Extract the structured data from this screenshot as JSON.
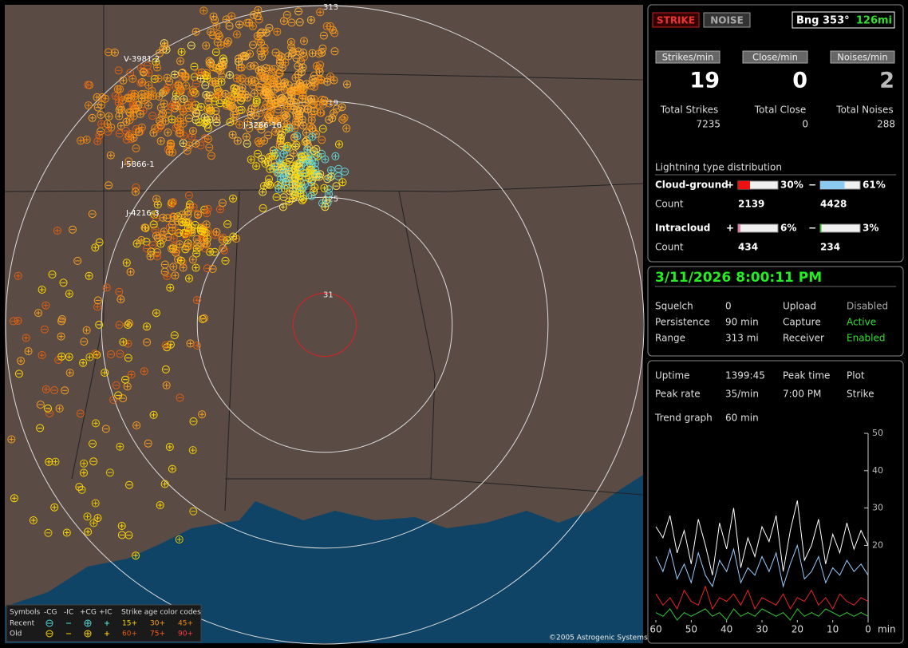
{
  "map": {
    "ring_ranges": [
      313,
      219,
      125,
      31
    ],
    "station_labels": [
      "V-3981-2",
      "J-3286-16",
      "J-5866-1",
      "J-4216-3"
    ],
    "legend": {
      "symbols": "Symbols",
      "headers": [
        "-CG",
        "-IC",
        "+CG",
        "+IC"
      ],
      "age_title": "Strike age color codes",
      "rows": [
        {
          "name": "Recent",
          "ages": [
            "15+",
            "30+",
            "45+"
          ]
        },
        {
          "name": "Old",
          "ages": [
            "60+",
            "75+",
            "90+"
          ]
        }
      ]
    },
    "copyright": "©2005 Astrogenic Systems"
  },
  "status": {
    "buttons": [
      "STRIKE",
      "NOISE"
    ],
    "bearing": "Bng 353°",
    "distance": "126mi"
  },
  "rates": [
    {
      "label": "Strikes/min",
      "value": 19,
      "total_label": "Total Strikes",
      "total": 7235
    },
    {
      "label": "Close/min",
      "value": 0,
      "total_label": "Total Close",
      "total": 0
    },
    {
      "label": "Noises/min",
      "value": 2,
      "total_label": "Total Noises",
      "total": 288
    }
  ],
  "distribution": {
    "title": "Lightning type distribution",
    "count_label": "Count",
    "rows": [
      {
        "name": "Cloud-ground",
        "parts": [
          {
            "sign": "+",
            "value": 30,
            "label": "30%",
            "count": 2139
          },
          {
            "sign": "−",
            "value": 61,
            "label": "61%",
            "count": 4428
          }
        ]
      },
      {
        "name": "Intracloud",
        "parts": [
          {
            "sign": "+",
            "value": 6,
            "label": "6%",
            "count": 434
          },
          {
            "sign": "−",
            "value": 3,
            "label": "3%",
            "count": 234
          }
        ]
      }
    ]
  },
  "clock": "3/11/2026 8:00:11 PM",
  "settings": [
    [
      "Squelch",
      "0",
      "Upload",
      "Disabled"
    ],
    [
      "Persistence",
      "90 min",
      "Capture",
      "Active"
    ],
    [
      "Range",
      "313 mi",
      "Receiver",
      "Enabled"
    ]
  ],
  "stats": [
    [
      "Uptime",
      "1399:45",
      "Peak time",
      "Plot"
    ],
    [
      "Peak rate",
      "35/min",
      "7:00 PM",
      "Strike"
    ]
  ],
  "trend": {
    "label": "Trend graph",
    "span": "60 min",
    "x_unit": "min",
    "xlim": [
      60,
      0
    ],
    "xticks": [
      60,
      50,
      40,
      30,
      20,
      10,
      0
    ],
    "ylim": [
      0,
      50
    ],
    "yticks": [
      20,
      30,
      40,
      50
    ],
    "x": [
      60,
      58,
      56,
      54,
      52,
      50,
      48,
      46,
      44,
      42,
      40,
      38,
      36,
      34,
      32,
      30,
      28,
      26,
      24,
      22,
      20,
      18,
      16,
      14,
      12,
      10,
      8,
      6,
      4,
      2,
      0
    ],
    "series": [
      {
        "color": "#ffffff",
        "values": [
          25,
          22,
          28,
          18,
          24,
          15,
          27,
          20,
          12,
          26,
          19,
          30,
          14,
          22,
          17,
          25,
          21,
          28,
          13,
          24,
          32,
          16,
          20,
          27,
          15,
          23,
          18,
          26,
          19,
          24,
          20
        ]
      },
      {
        "color": "#99ccff",
        "values": [
          17,
          13,
          19,
          11,
          15,
          10,
          18,
          12,
          9,
          16,
          13,
          19,
          10,
          14,
          12,
          17,
          13,
          18,
          9,
          15,
          20,
          11,
          13,
          17,
          10,
          14,
          12,
          16,
          13,
          15,
          12
        ]
      },
      {
        "color": "#ee2222",
        "values": [
          7,
          4,
          6,
          3,
          8,
          5,
          4,
          9,
          3,
          6,
          5,
          7,
          4,
          8,
          3,
          6,
          5,
          4,
          7,
          3,
          6,
          5,
          8,
          4,
          6,
          3,
          7,
          5,
          4,
          6,
          5
        ]
      },
      {
        "color": "#33cc33",
        "values": [
          2,
          1,
          3,
          0,
          2,
          1,
          2,
          3,
          1,
          2,
          0,
          3,
          1,
          2,
          1,
          3,
          2,
          1,
          2,
          0,
          3,
          1,
          2,
          1,
          3,
          2,
          1,
          2,
          1,
          2,
          1
        ]
      }
    ]
  }
}
